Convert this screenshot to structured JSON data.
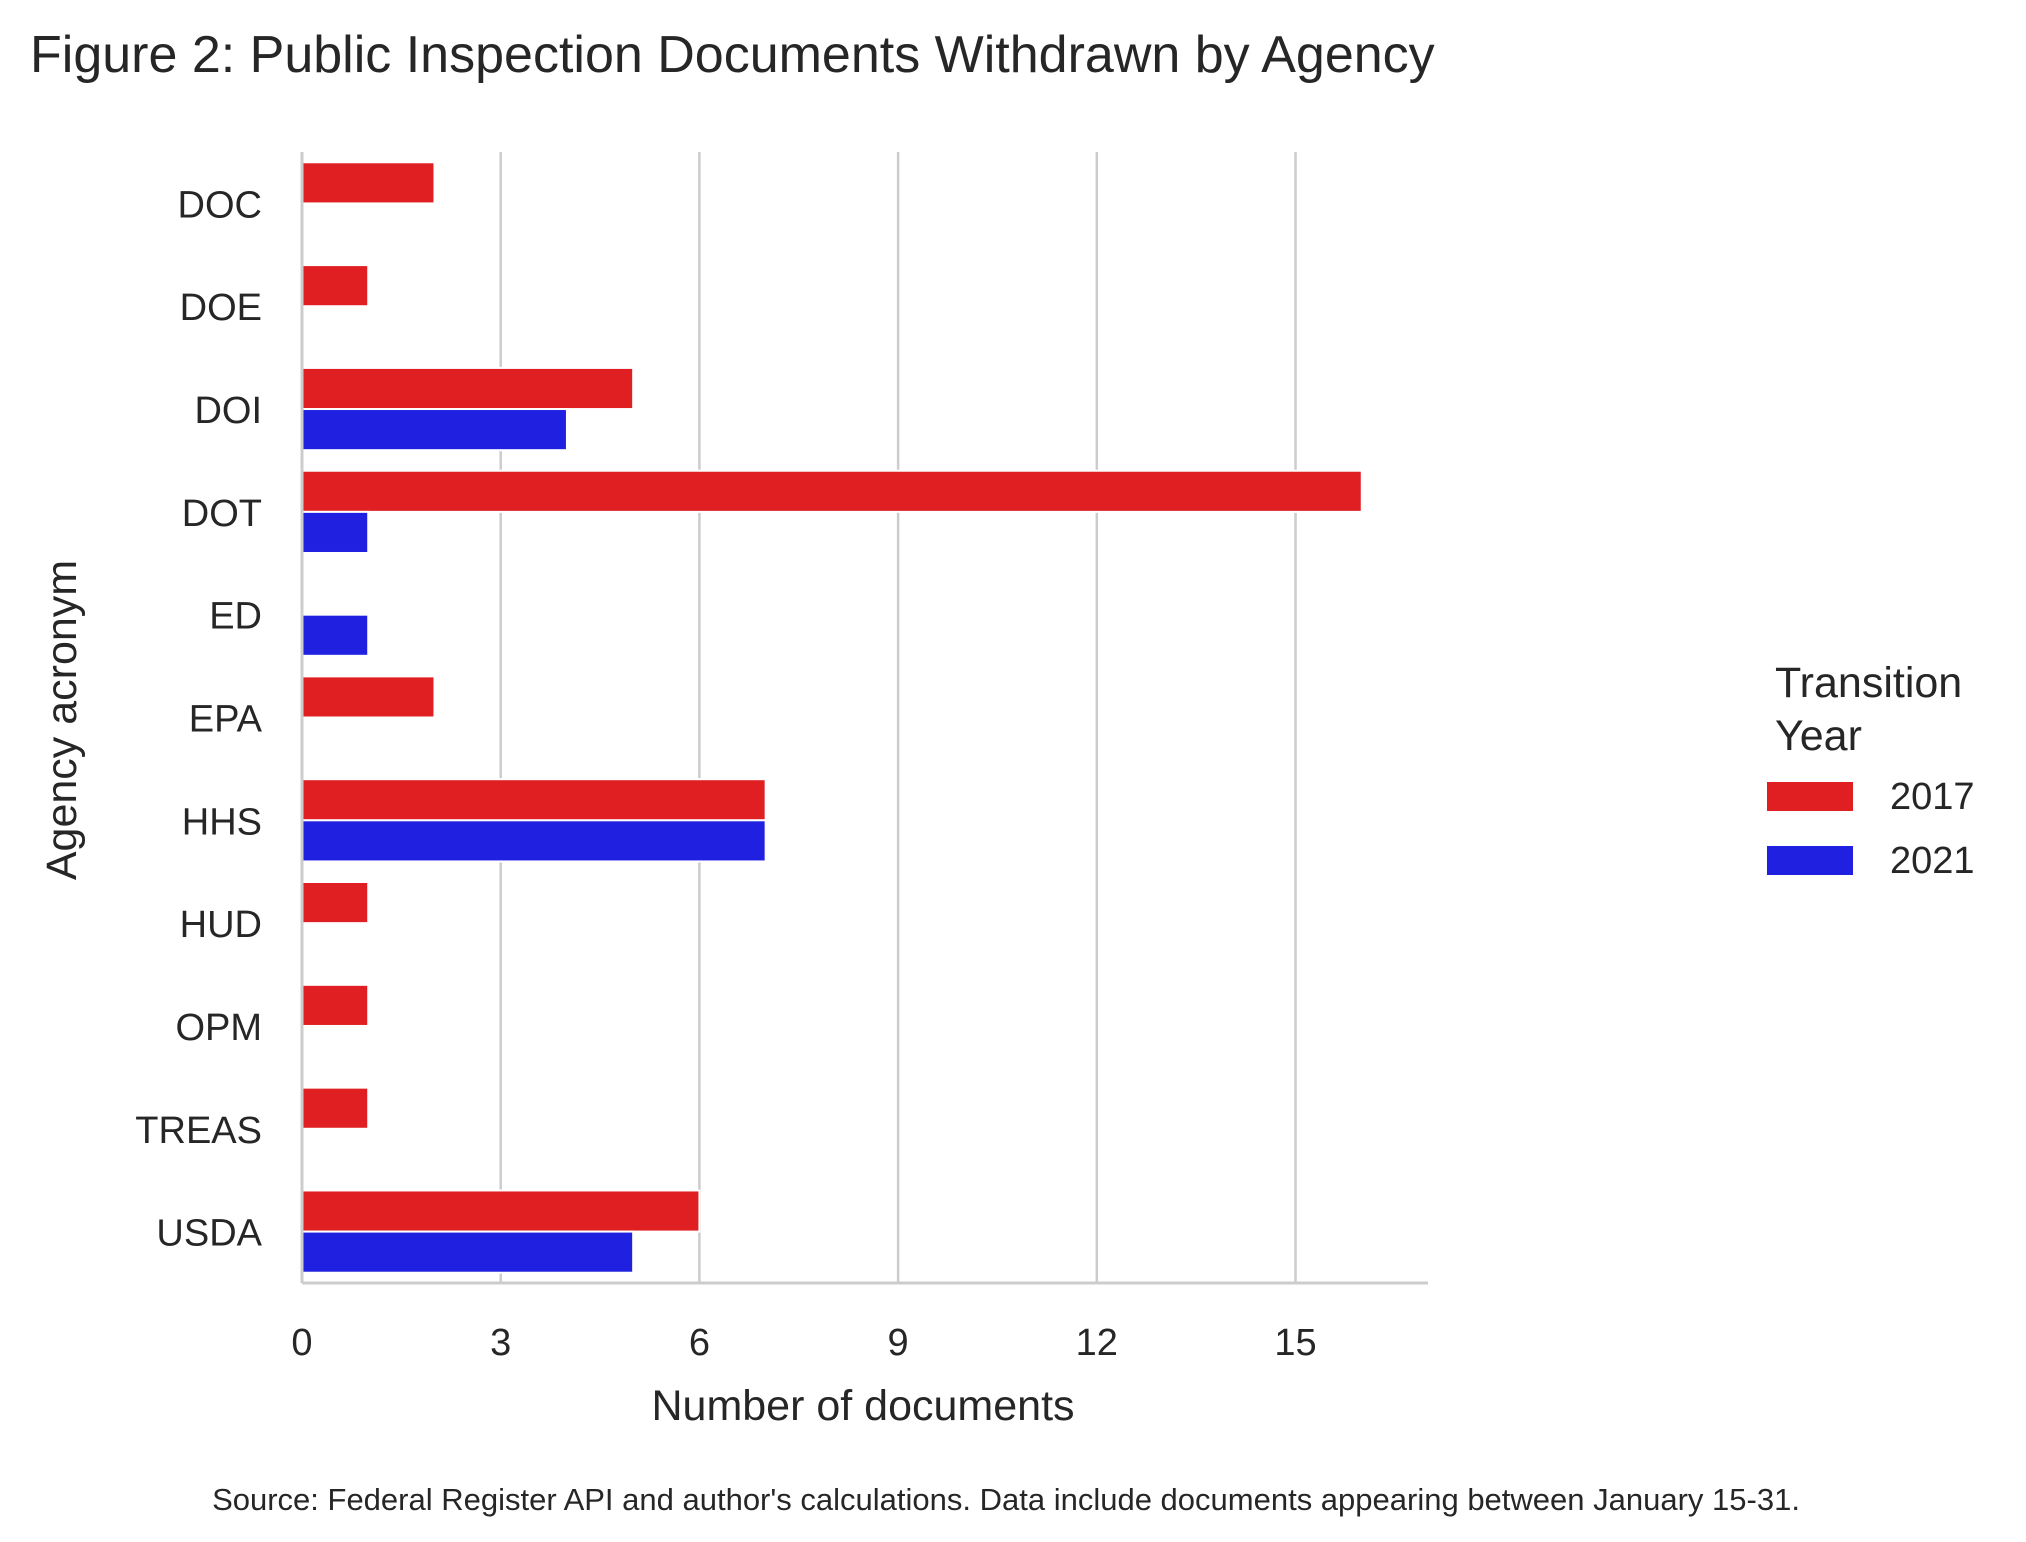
{
  "chart_data": {
    "type": "bar",
    "orientation": "horizontal",
    "title": "Figure 2: Public Inspection Documents Withdrawn by Agency",
    "xlabel": "Number of documents",
    "ylabel": "Agency acronym",
    "categories": [
      "DOC",
      "DOE",
      "DOI",
      "DOT",
      "ED",
      "EPA",
      "HHS",
      "HUD",
      "OPM",
      "TREAS",
      "USDA"
    ],
    "series": [
      {
        "name": "2017",
        "color": "#e01f22",
        "values": [
          2,
          1,
          5,
          16,
          0,
          2,
          7,
          1,
          1,
          1,
          6
        ]
      },
      {
        "name": "2021",
        "color": "#1f20e0",
        "values": [
          0,
          0,
          4,
          1,
          1,
          0,
          7,
          0,
          0,
          0,
          5
        ]
      }
    ],
    "xlim": [
      0,
      17
    ],
    "xticks": [
      0,
      3,
      6,
      9,
      12,
      15
    ],
    "grid": "vertical",
    "legend": {
      "title": "Transition\nYear",
      "placement": "right"
    },
    "footnote": "Source: Federal Register API and author's calculations. Data include documents appearing between January 15-31."
  }
}
